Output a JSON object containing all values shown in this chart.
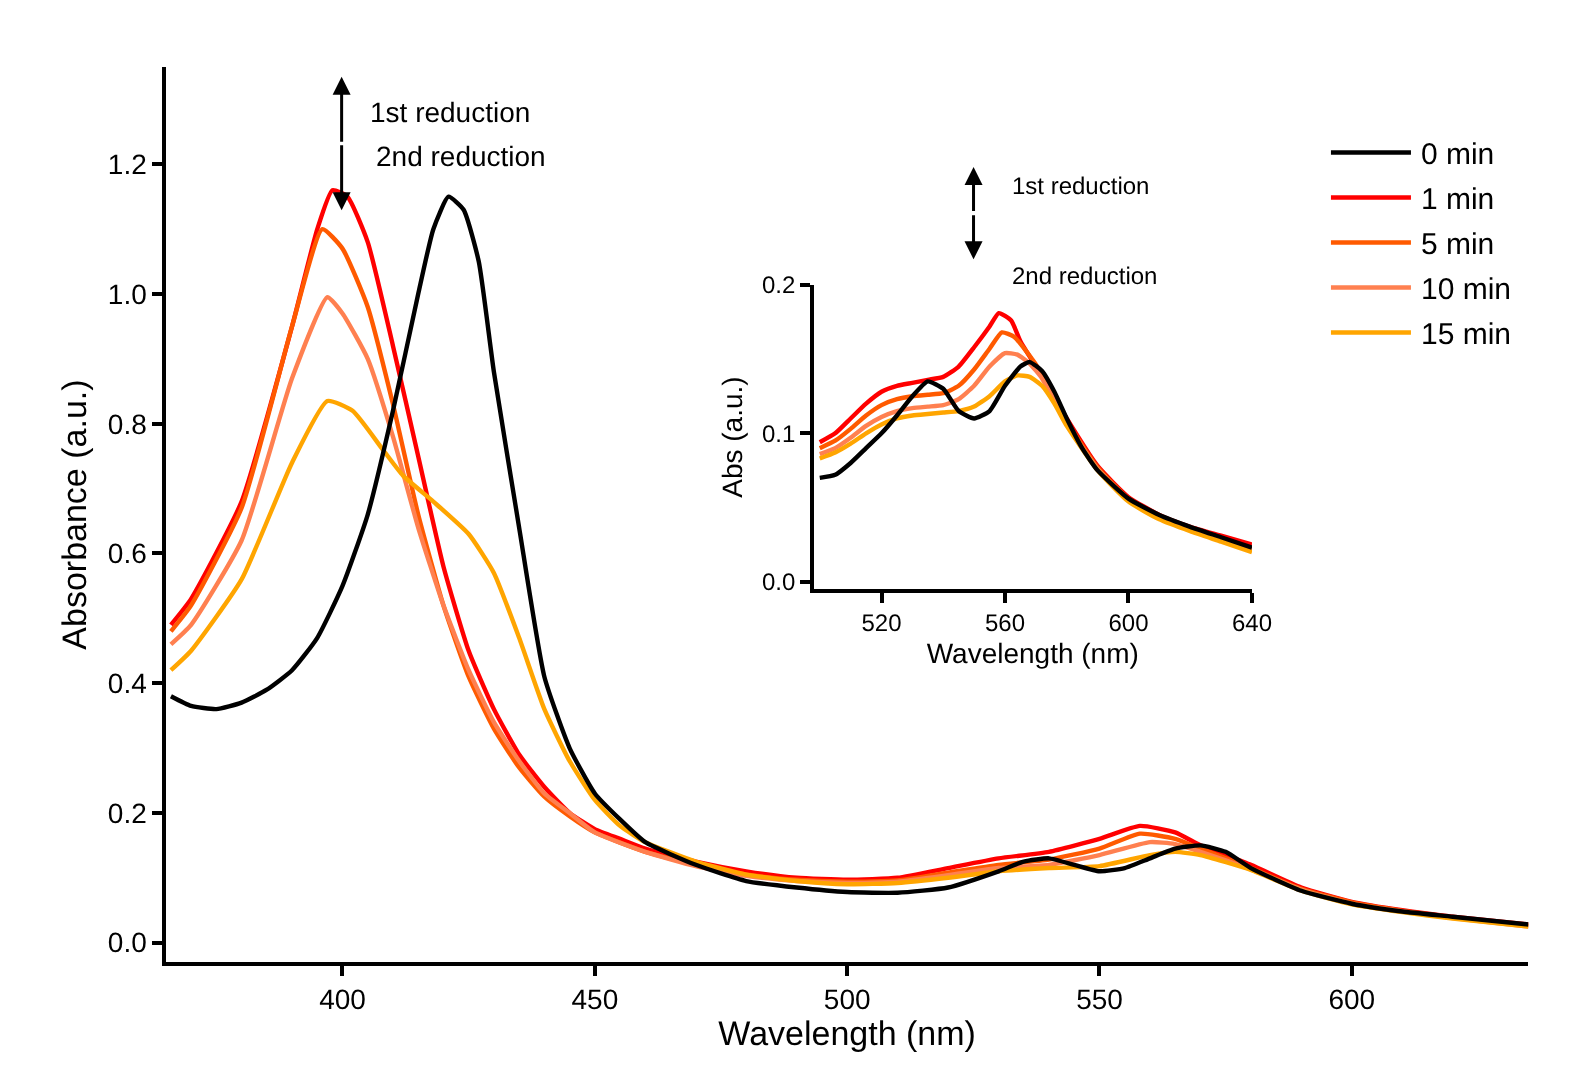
{
  "chart_data": [
    {
      "type": "line",
      "xlabel": "Wavelength (nm)",
      "ylabel": "Absorbance (a.u.)",
      "xlim": [
        365,
        635
      ],
      "ylim": [
        -0.03,
        1.35
      ],
      "xticks": [
        400,
        450,
        500,
        550,
        600
      ],
      "yticks": [
        {
          "value": 0,
          "label": "0.0"
        },
        {
          "value": 0.2,
          "label": "0.2"
        },
        {
          "value": 0.4,
          "label": "0.4"
        },
        {
          "value": 0.6,
          "label": "0.6"
        },
        {
          "value": 0.8,
          "label": "0.8"
        },
        {
          "value": 1.0,
          "label": "1.0"
        },
        {
          "value": 1.2,
          "label": "1.2"
        }
      ],
      "legend": "top right",
      "marker": "none",
      "line_style": "solid",
      "annotations": [
        "1st reduction",
        "2nd reduction"
      ],
      "series": [
        {
          "name": "0 min",
          "color": "#000000",
          "x": [
            366,
            370,
            375,
            380,
            385,
            390,
            395,
            400,
            405,
            410,
            415,
            418,
            421,
            424,
            427,
            430,
            435,
            440,
            445,
            450,
            455,
            460,
            470,
            480,
            490,
            500,
            510,
            520,
            530,
            535,
            540,
            545,
            550,
            555,
            560,
            565,
            570,
            575,
            580,
            590,
            600,
            610,
            620,
            635
          ],
          "values": [
            0.38,
            0.365,
            0.36,
            0.37,
            0.39,
            0.42,
            0.47,
            0.55,
            0.66,
            0.82,
            1.0,
            1.1,
            1.15,
            1.13,
            1.05,
            0.88,
            0.64,
            0.41,
            0.3,
            0.23,
            0.19,
            0.155,
            0.12,
            0.095,
            0.085,
            0.078,
            0.077,
            0.085,
            0.11,
            0.125,
            0.13,
            0.12,
            0.11,
            0.115,
            0.13,
            0.145,
            0.15,
            0.14,
            0.115,
            0.08,
            0.06,
            0.048,
            0.04,
            0.028
          ]
        },
        {
          "name": "1 min",
          "color": "#ff0000",
          "x": [
            366,
            370,
            380,
            390,
            395,
            398,
            401,
            405,
            410,
            415,
            420,
            425,
            430,
            435,
            440,
            445,
            450,
            455,
            460,
            470,
            480,
            490,
            500,
            510,
            520,
            530,
            540,
            550,
            558,
            565,
            570,
            580,
            590,
            600,
            610,
            620,
            635
          ],
          "values": [
            0.49,
            0.53,
            0.68,
            0.95,
            1.1,
            1.16,
            1.15,
            1.08,
            0.92,
            0.75,
            0.58,
            0.45,
            0.36,
            0.29,
            0.24,
            0.2,
            0.175,
            0.16,
            0.145,
            0.125,
            0.11,
            0.1,
            0.097,
            0.1,
            0.115,
            0.13,
            0.14,
            0.16,
            0.18,
            0.17,
            0.15,
            0.12,
            0.085,
            0.063,
            0.05,
            0.04,
            0.028
          ]
        },
        {
          "name": "5 min",
          "color": "#ff5a00",
          "x": [
            366,
            370,
            380,
            390,
            396,
            400,
            405,
            410,
            415,
            420,
            425,
            430,
            435,
            440,
            445,
            450,
            460,
            470,
            480,
            490,
            500,
            510,
            520,
            530,
            540,
            550,
            558,
            565,
            570,
            580,
            590,
            600,
            610,
            620,
            635
          ],
          "values": [
            0.48,
            0.52,
            0.67,
            0.95,
            1.1,
            1.07,
            0.98,
            0.83,
            0.66,
            0.52,
            0.41,
            0.33,
            0.27,
            0.225,
            0.195,
            0.17,
            0.14,
            0.12,
            0.105,
            0.097,
            0.094,
            0.096,
            0.108,
            0.12,
            0.128,
            0.145,
            0.168,
            0.16,
            0.145,
            0.115,
            0.083,
            0.062,
            0.049,
            0.039,
            0.026
          ]
        },
        {
          "name": "10 min",
          "color": "#ff8050",
          "x": [
            366,
            370,
            380,
            390,
            397,
            400,
            405,
            410,
            415,
            420,
            425,
            430,
            435,
            440,
            445,
            450,
            460,
            470,
            480,
            490,
            500,
            510,
            520,
            530,
            540,
            550,
            560,
            565,
            570,
            580,
            590,
            600,
            610,
            620,
            635
          ],
          "values": [
            0.46,
            0.49,
            0.62,
            0.87,
            0.995,
            0.97,
            0.9,
            0.78,
            0.64,
            0.52,
            0.42,
            0.34,
            0.28,
            0.23,
            0.2,
            0.17,
            0.14,
            0.118,
            0.103,
            0.095,
            0.092,
            0.094,
            0.104,
            0.115,
            0.12,
            0.135,
            0.155,
            0.152,
            0.14,
            0.113,
            0.082,
            0.06,
            0.048,
            0.038,
            0.025
          ]
        },
        {
          "name": "15 min",
          "color": "#ffa500",
          "x": [
            366,
            370,
            380,
            390,
            397,
            402,
            408,
            412,
            418,
            425,
            430,
            435,
            440,
            445,
            450,
            455,
            460,
            470,
            480,
            490,
            500,
            510,
            520,
            530,
            540,
            550,
            560,
            565,
            570,
            580,
            590,
            600,
            610,
            620,
            635
          ],
          "values": [
            0.42,
            0.45,
            0.56,
            0.74,
            0.835,
            0.82,
            0.76,
            0.72,
            0.68,
            0.63,
            0.57,
            0.47,
            0.36,
            0.28,
            0.22,
            0.18,
            0.155,
            0.125,
            0.105,
            0.095,
            0.09,
            0.092,
            0.1,
            0.11,
            0.115,
            0.118,
            0.135,
            0.14,
            0.135,
            0.112,
            0.08,
            0.059,
            0.047,
            0.037,
            0.025
          ]
        }
      ]
    },
    {
      "type": "line",
      "xlabel": "Wavelength (nm)",
      "ylabel": "Abs (a.u.)",
      "xlim": [
        498,
        640
      ],
      "ylim": [
        -0.005,
        0.2
      ],
      "xticks": [
        520,
        560,
        600,
        640
      ],
      "yticks": [
        {
          "value": 0,
          "label": "0.0"
        },
        {
          "value": 0.1,
          "label": "0.1"
        },
        {
          "value": 0.2,
          "label": "0.2"
        }
      ],
      "legend": false,
      "marker": "none",
      "line_style": "solid",
      "annotations": [
        "1st reduction",
        "2nd reduction"
      ],
      "series": [
        {
          "color": "#000000",
          "x": [
            500,
            505,
            510,
            515,
            520,
            525,
            530,
            535,
            540,
            545,
            550,
            555,
            560,
            565,
            568,
            572,
            576,
            580,
            585,
            590,
            600,
            610,
            620,
            630,
            640
          ],
          "values": [
            0.07,
            0.072,
            0.08,
            0.09,
            0.1,
            0.112,
            0.125,
            0.135,
            0.13,
            0.115,
            0.11,
            0.115,
            0.132,
            0.145,
            0.148,
            0.142,
            0.128,
            0.11,
            0.09,
            0.075,
            0.056,
            0.045,
            0.037,
            0.03,
            0.023
          ]
        },
        {
          "color": "#ff0000",
          "x": [
            500,
            505,
            510,
            515,
            520,
            525,
            530,
            535,
            540,
            545,
            550,
            555,
            558,
            562,
            565,
            570,
            575,
            580,
            590,
            600,
            610,
            620,
            630,
            640
          ],
          "values": [
            0.094,
            0.1,
            0.11,
            0.12,
            0.128,
            0.132,
            0.134,
            0.136,
            0.138,
            0.145,
            0.158,
            0.172,
            0.181,
            0.176,
            0.162,
            0.145,
            0.128,
            0.11,
            0.078,
            0.057,
            0.045,
            0.037,
            0.031,
            0.025
          ]
        },
        {
          "color": "#ff5a00",
          "x": [
            500,
            505,
            510,
            515,
            520,
            525,
            530,
            535,
            540,
            545,
            550,
            555,
            559,
            563,
            567,
            572,
            576,
            580,
            590,
            600,
            610,
            620,
            630,
            640
          ],
          "values": [
            0.09,
            0.095,
            0.103,
            0.112,
            0.119,
            0.123,
            0.125,
            0.126,
            0.127,
            0.132,
            0.143,
            0.157,
            0.168,
            0.165,
            0.155,
            0.14,
            0.125,
            0.108,
            0.077,
            0.056,
            0.044,
            0.036,
            0.029,
            0.022
          ]
        },
        {
          "color": "#ff8050",
          "x": [
            500,
            505,
            510,
            515,
            520,
            525,
            530,
            535,
            540,
            545,
            550,
            555,
            560,
            564,
            568,
            572,
            576,
            580,
            590,
            600,
            610,
            620,
            630,
            640
          ],
          "values": [
            0.086,
            0.09,
            0.097,
            0.105,
            0.111,
            0.115,
            0.117,
            0.118,
            0.119,
            0.123,
            0.132,
            0.145,
            0.154,
            0.153,
            0.147,
            0.137,
            0.122,
            0.106,
            0.076,
            0.055,
            0.043,
            0.035,
            0.028,
            0.021
          ]
        },
        {
          "color": "#ffa500",
          "x": [
            500,
            505,
            510,
            515,
            520,
            525,
            530,
            535,
            540,
            545,
            550,
            555,
            560,
            564,
            568,
            572,
            576,
            580,
            590,
            600,
            610,
            620,
            630,
            640
          ],
          "values": [
            0.083,
            0.087,
            0.093,
            0.1,
            0.106,
            0.11,
            0.112,
            0.113,
            0.114,
            0.115,
            0.118,
            0.125,
            0.135,
            0.139,
            0.138,
            0.132,
            0.12,
            0.105,
            0.075,
            0.054,
            0.042,
            0.034,
            0.027,
            0.02
          ]
        }
      ]
    }
  ]
}
